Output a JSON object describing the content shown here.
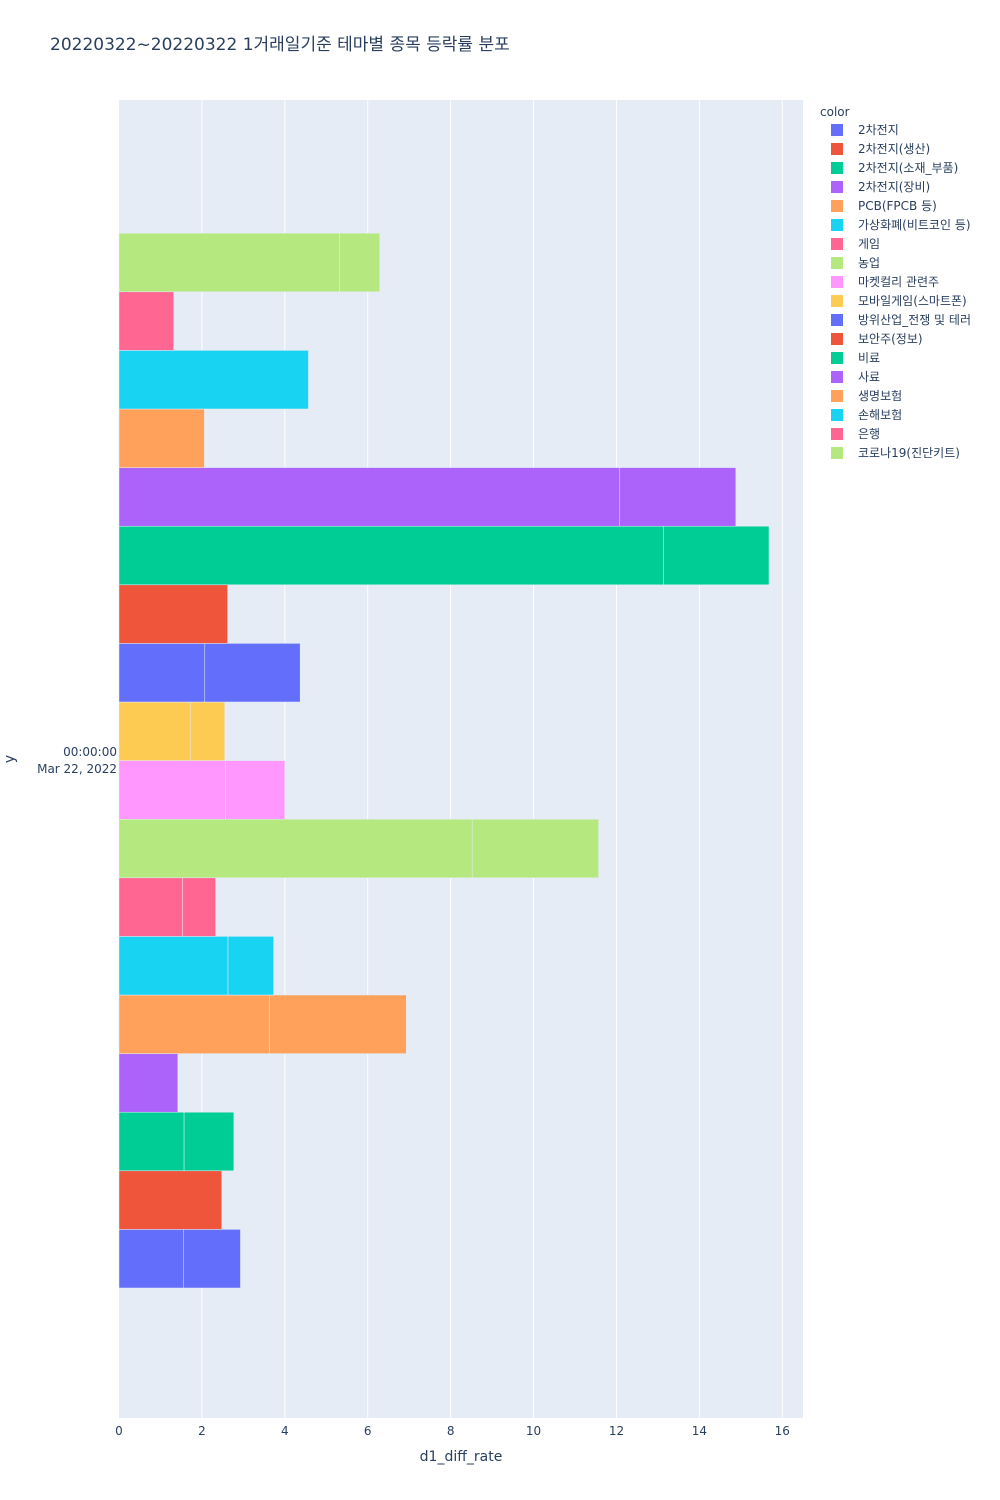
{
  "chart_data": {
    "type": "bar",
    "orientation": "horizontal",
    "barmode": "stack",
    "title": "20220322~20220322 1거래일기준 테마별 종목 등락률 분포",
    "xlabel": "d1_diff_rate",
    "ylabel": "y",
    "xlim": [
      0,
      16.5
    ],
    "x_ticks": [
      "0",
      "2",
      "4",
      "6",
      "8",
      "10",
      "12",
      "14",
      "16"
    ],
    "y_tick_label_line1": "00:00:00",
    "y_tick_label_line2": "Mar 22, 2022",
    "grid": true,
    "legend_title": "color",
    "legend_position": "right",
    "series": [
      {
        "name": "2차전지",
        "color": "#636efa",
        "segments": [
          1.55,
          1.38
        ]
      },
      {
        "name": "2차전지(생산)",
        "color": "#EF553B",
        "segments": [
          2.48
        ]
      },
      {
        "name": "2차전지(소재_부품)",
        "color": "#00cc96",
        "segments": [
          1.57,
          1.2
        ]
      },
      {
        "name": "2차전지(장비)",
        "color": "#ab63fa",
        "segments": [
          1.42
        ]
      },
      {
        "name": "PCB(FPCB 등)",
        "color": "#FFA15A",
        "segments": [
          3.63,
          3.3
        ]
      },
      {
        "name": "가상화폐(비트코인 등)",
        "color": "#19d3f3",
        "segments": [
          2.63,
          1.1
        ]
      },
      {
        "name": "게임",
        "color": "#FF6692",
        "segments": [
          1.53,
          0.8
        ]
      },
      {
        "name": "농업",
        "color": "#B6E880",
        "segments": [
          8.52,
          3.05
        ]
      },
      {
        "name": "마켓컬리 관련주",
        "color": "#FF97FF",
        "segments": [
          2.57,
          1.43
        ]
      },
      {
        "name": "모바일게임(스마트폰)",
        "color": "#FECB52",
        "segments": [
          1.72,
          0.83
        ]
      },
      {
        "name": "방위산업_전쟁 및 테러",
        "color": "#636efa",
        "segments": [
          2.07,
          2.3
        ]
      },
      {
        "name": "보안주(정보)",
        "color": "#EF553B",
        "segments": [
          2.62
        ]
      },
      {
        "name": "비료",
        "color": "#00cc96",
        "segments": [
          13.13,
          2.55
        ]
      },
      {
        "name": "사료",
        "color": "#ab63fa",
        "segments": [
          12.08,
          2.8
        ]
      },
      {
        "name": "생명보험",
        "color": "#FFA15A",
        "segments": [
          2.06
        ]
      },
      {
        "name": "손해보험",
        "color": "#19d3f3",
        "segments": [
          4.57
        ]
      },
      {
        "name": "은행",
        "color": "#FF6692",
        "segments": [
          1.32
        ]
      },
      {
        "name": "코로나19(진단키트)",
        "color": "#B6E880",
        "segments": [
          5.32,
          0.97
        ]
      }
    ]
  }
}
